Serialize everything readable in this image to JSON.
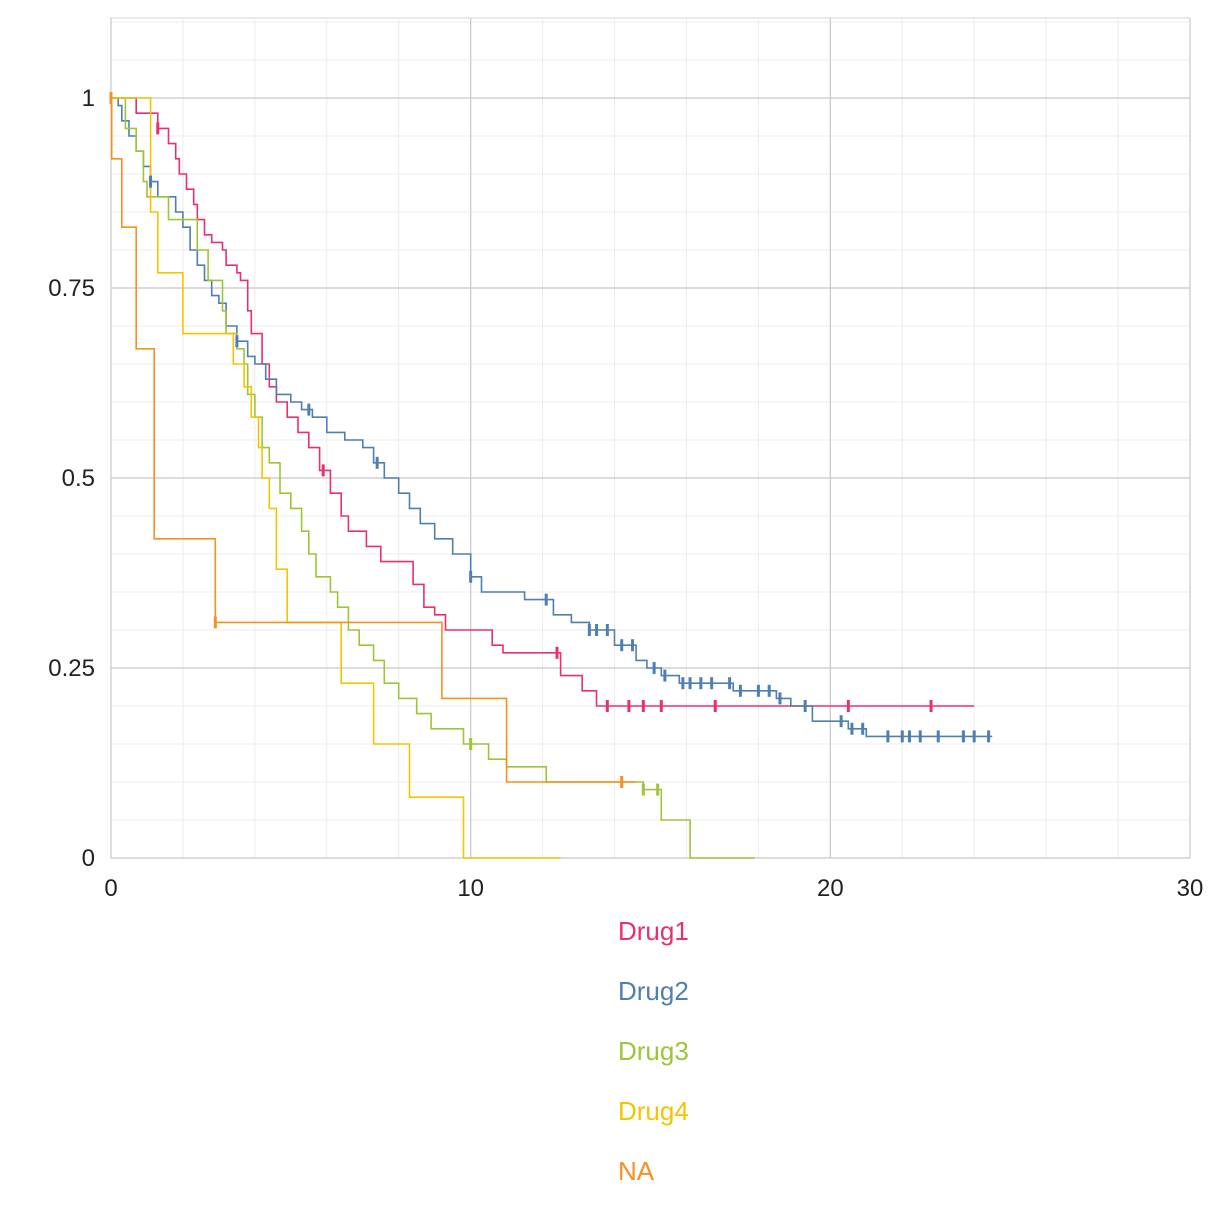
{
  "chart_data": {
    "type": "line",
    "subtype": "kaplan-meier step",
    "title": "",
    "xlabel": "",
    "ylabel": "",
    "xlim": [
      0,
      30
    ],
    "ylim": [
      0,
      1.1
    ],
    "x_ticks": [
      0,
      10,
      20,
      30
    ],
    "x_tick_labels": [
      "0",
      "10",
      "20",
      "30"
    ],
    "y_ticks": [
      0,
      0.25,
      0.5,
      0.75,
      1
    ],
    "y_tick_labels": [
      "0",
      "0.25",
      "0.5",
      "0.75",
      "1"
    ],
    "grid": true,
    "legend_position": "bottom",
    "series": [
      {
        "name": "Drug1",
        "color": "#e8306f",
        "steps": [
          [
            0,
            1
          ],
          [
            0.7,
            0.98
          ],
          [
            1.3,
            0.96
          ],
          [
            1.6,
            0.94
          ],
          [
            1.8,
            0.92
          ],
          [
            1.9,
            0.9
          ],
          [
            2.1,
            0.88
          ],
          [
            2.3,
            0.86
          ],
          [
            2.4,
            0.84
          ],
          [
            2.6,
            0.82
          ],
          [
            2.8,
            0.81
          ],
          [
            3.1,
            0.8
          ],
          [
            3.2,
            0.78
          ],
          [
            3.5,
            0.77
          ],
          [
            3.6,
            0.76
          ],
          [
            3.8,
            0.72
          ],
          [
            3.9,
            0.69
          ],
          [
            4.2,
            0.65
          ],
          [
            4.4,
            0.62
          ],
          [
            4.6,
            0.6
          ],
          [
            4.9,
            0.58
          ],
          [
            5.2,
            0.56
          ],
          [
            5.5,
            0.54
          ],
          [
            5.8,
            0.51
          ],
          [
            6.1,
            0.48
          ],
          [
            6.4,
            0.45
          ],
          [
            6.6,
            0.43
          ],
          [
            7.1,
            0.41
          ],
          [
            7.5,
            0.39
          ],
          [
            8.4,
            0.36
          ],
          [
            8.7,
            0.33
          ],
          [
            9.0,
            0.32
          ],
          [
            9.3,
            0.3
          ],
          [
            10.6,
            0.28
          ],
          [
            10.9,
            0.27
          ],
          [
            12.5,
            0.24
          ],
          [
            13.1,
            0.22
          ],
          [
            13.5,
            0.2
          ],
          [
            24.0,
            0.2
          ]
        ],
        "censor": [
          1.3,
          5.9,
          12.4,
          13.8,
          14.4,
          14.8,
          15.3,
          16.8,
          20.5,
          22.8
        ]
      },
      {
        "name": "Drug2",
        "color": "#4d7fb2",
        "steps": [
          [
            0,
            1
          ],
          [
            0.2,
            0.99
          ],
          [
            0.3,
            0.97
          ],
          [
            0.5,
            0.95
          ],
          [
            0.7,
            0.93
          ],
          [
            0.9,
            0.91
          ],
          [
            1.1,
            0.89
          ],
          [
            1.3,
            0.87
          ],
          [
            1.8,
            0.85
          ],
          [
            2.0,
            0.83
          ],
          [
            2.2,
            0.8
          ],
          [
            2.4,
            0.78
          ],
          [
            2.6,
            0.76
          ],
          [
            2.8,
            0.74
          ],
          [
            3.0,
            0.73
          ],
          [
            3.2,
            0.7
          ],
          [
            3.5,
            0.68
          ],
          [
            3.8,
            0.66
          ],
          [
            4.0,
            0.65
          ],
          [
            4.3,
            0.63
          ],
          [
            4.6,
            0.61
          ],
          [
            5.0,
            0.6
          ],
          [
            5.3,
            0.59
          ],
          [
            5.6,
            0.58
          ],
          [
            6.0,
            0.56
          ],
          [
            6.5,
            0.55
          ],
          [
            7.0,
            0.54
          ],
          [
            7.3,
            0.52
          ],
          [
            7.6,
            0.5
          ],
          [
            8.0,
            0.48
          ],
          [
            8.3,
            0.46
          ],
          [
            8.6,
            0.44
          ],
          [
            9.0,
            0.42
          ],
          [
            9.5,
            0.4
          ],
          [
            10.0,
            0.37
          ],
          [
            10.3,
            0.35
          ],
          [
            11.5,
            0.34
          ],
          [
            12.3,
            0.32
          ],
          [
            12.8,
            0.31
          ],
          [
            13.3,
            0.3
          ],
          [
            14.0,
            0.28
          ],
          [
            14.6,
            0.26
          ],
          [
            14.9,
            0.25
          ],
          [
            15.3,
            0.24
          ],
          [
            15.8,
            0.23
          ],
          [
            17.3,
            0.22
          ],
          [
            18.5,
            0.21
          ],
          [
            18.9,
            0.2
          ],
          [
            19.5,
            0.18
          ],
          [
            20.5,
            0.17
          ],
          [
            21.0,
            0.16
          ],
          [
            24.5,
            0.16
          ]
        ],
        "censor": [
          1.1,
          3.5,
          5.5,
          7.4,
          10.0,
          12.1,
          13.3,
          13.5,
          13.8,
          14.2,
          14.5,
          15.1,
          15.4,
          15.9,
          16.1,
          16.4,
          16.7,
          17.2,
          17.5,
          18.0,
          18.3,
          18.6,
          19.3,
          20.3,
          20.6,
          20.9,
          21.6,
          22.0,
          22.2,
          22.5,
          23.0,
          23.7,
          24.0,
          24.4
        ]
      },
      {
        "name": "Drug3",
        "color": "#9ec437",
        "steps": [
          [
            0,
            1
          ],
          [
            0.4,
            0.96
          ],
          [
            0.7,
            0.93
          ],
          [
            0.9,
            0.89
          ],
          [
            1.0,
            0.87
          ],
          [
            1.6,
            0.84
          ],
          [
            2.4,
            0.8
          ],
          [
            2.7,
            0.76
          ],
          [
            3.1,
            0.72
          ],
          [
            3.2,
            0.69
          ],
          [
            3.5,
            0.67
          ],
          [
            3.7,
            0.65
          ],
          [
            3.8,
            0.61
          ],
          [
            4.0,
            0.58
          ],
          [
            4.2,
            0.54
          ],
          [
            4.4,
            0.52
          ],
          [
            4.7,
            0.48
          ],
          [
            5.0,
            0.46
          ],
          [
            5.3,
            0.43
          ],
          [
            5.5,
            0.4
          ],
          [
            5.7,
            0.37
          ],
          [
            6.1,
            0.35
          ],
          [
            6.3,
            0.33
          ],
          [
            6.6,
            0.3
          ],
          [
            6.9,
            0.28
          ],
          [
            7.3,
            0.26
          ],
          [
            7.6,
            0.23
          ],
          [
            8.0,
            0.21
          ],
          [
            8.5,
            0.19
          ],
          [
            8.9,
            0.17
          ],
          [
            9.8,
            0.15
          ],
          [
            10.5,
            0.13
          ],
          [
            11.0,
            0.12
          ],
          [
            12.1,
            0.1
          ],
          [
            14.8,
            0.09
          ],
          [
            15.3,
            0.05
          ],
          [
            16.1,
            0.0
          ],
          [
            17.9,
            0.0
          ]
        ],
        "censor": [
          10.0,
          14.8,
          15.2
        ]
      },
      {
        "name": "Drug4",
        "color": "#f5c400",
        "steps": [
          [
            0,
            1
          ],
          [
            1.1,
            0.92
          ],
          [
            1.1,
            0.85
          ],
          [
            1.3,
            0.77
          ],
          [
            2.0,
            0.69
          ],
          [
            3.4,
            0.65
          ],
          [
            3.7,
            0.62
          ],
          [
            3.9,
            0.58
          ],
          [
            4.1,
            0.54
          ],
          [
            4.2,
            0.5
          ],
          [
            4.4,
            0.46
          ],
          [
            4.6,
            0.38
          ],
          [
            4.9,
            0.31
          ],
          [
            5.0,
            0.31
          ],
          [
            6.4,
            0.23
          ],
          [
            7.3,
            0.15
          ],
          [
            8.3,
            0.08
          ],
          [
            9.1,
            0.08
          ],
          [
            9.8,
            0.0
          ],
          [
            12.5,
            0.0
          ]
        ],
        "censor": []
      },
      {
        "name": "NA",
        "color": "#f7901e",
        "steps": [
          [
            0,
            1
          ],
          [
            0.02,
            0.92
          ],
          [
            0.3,
            0.83
          ],
          [
            0.7,
            0.67
          ],
          [
            1.2,
            0.42
          ],
          [
            2.9,
            0.31
          ],
          [
            9.2,
            0.21
          ],
          [
            11.0,
            0.1
          ],
          [
            14.6,
            0.1
          ]
        ],
        "censor": [
          0.0,
          2.9,
          14.2
        ]
      }
    ]
  }
}
